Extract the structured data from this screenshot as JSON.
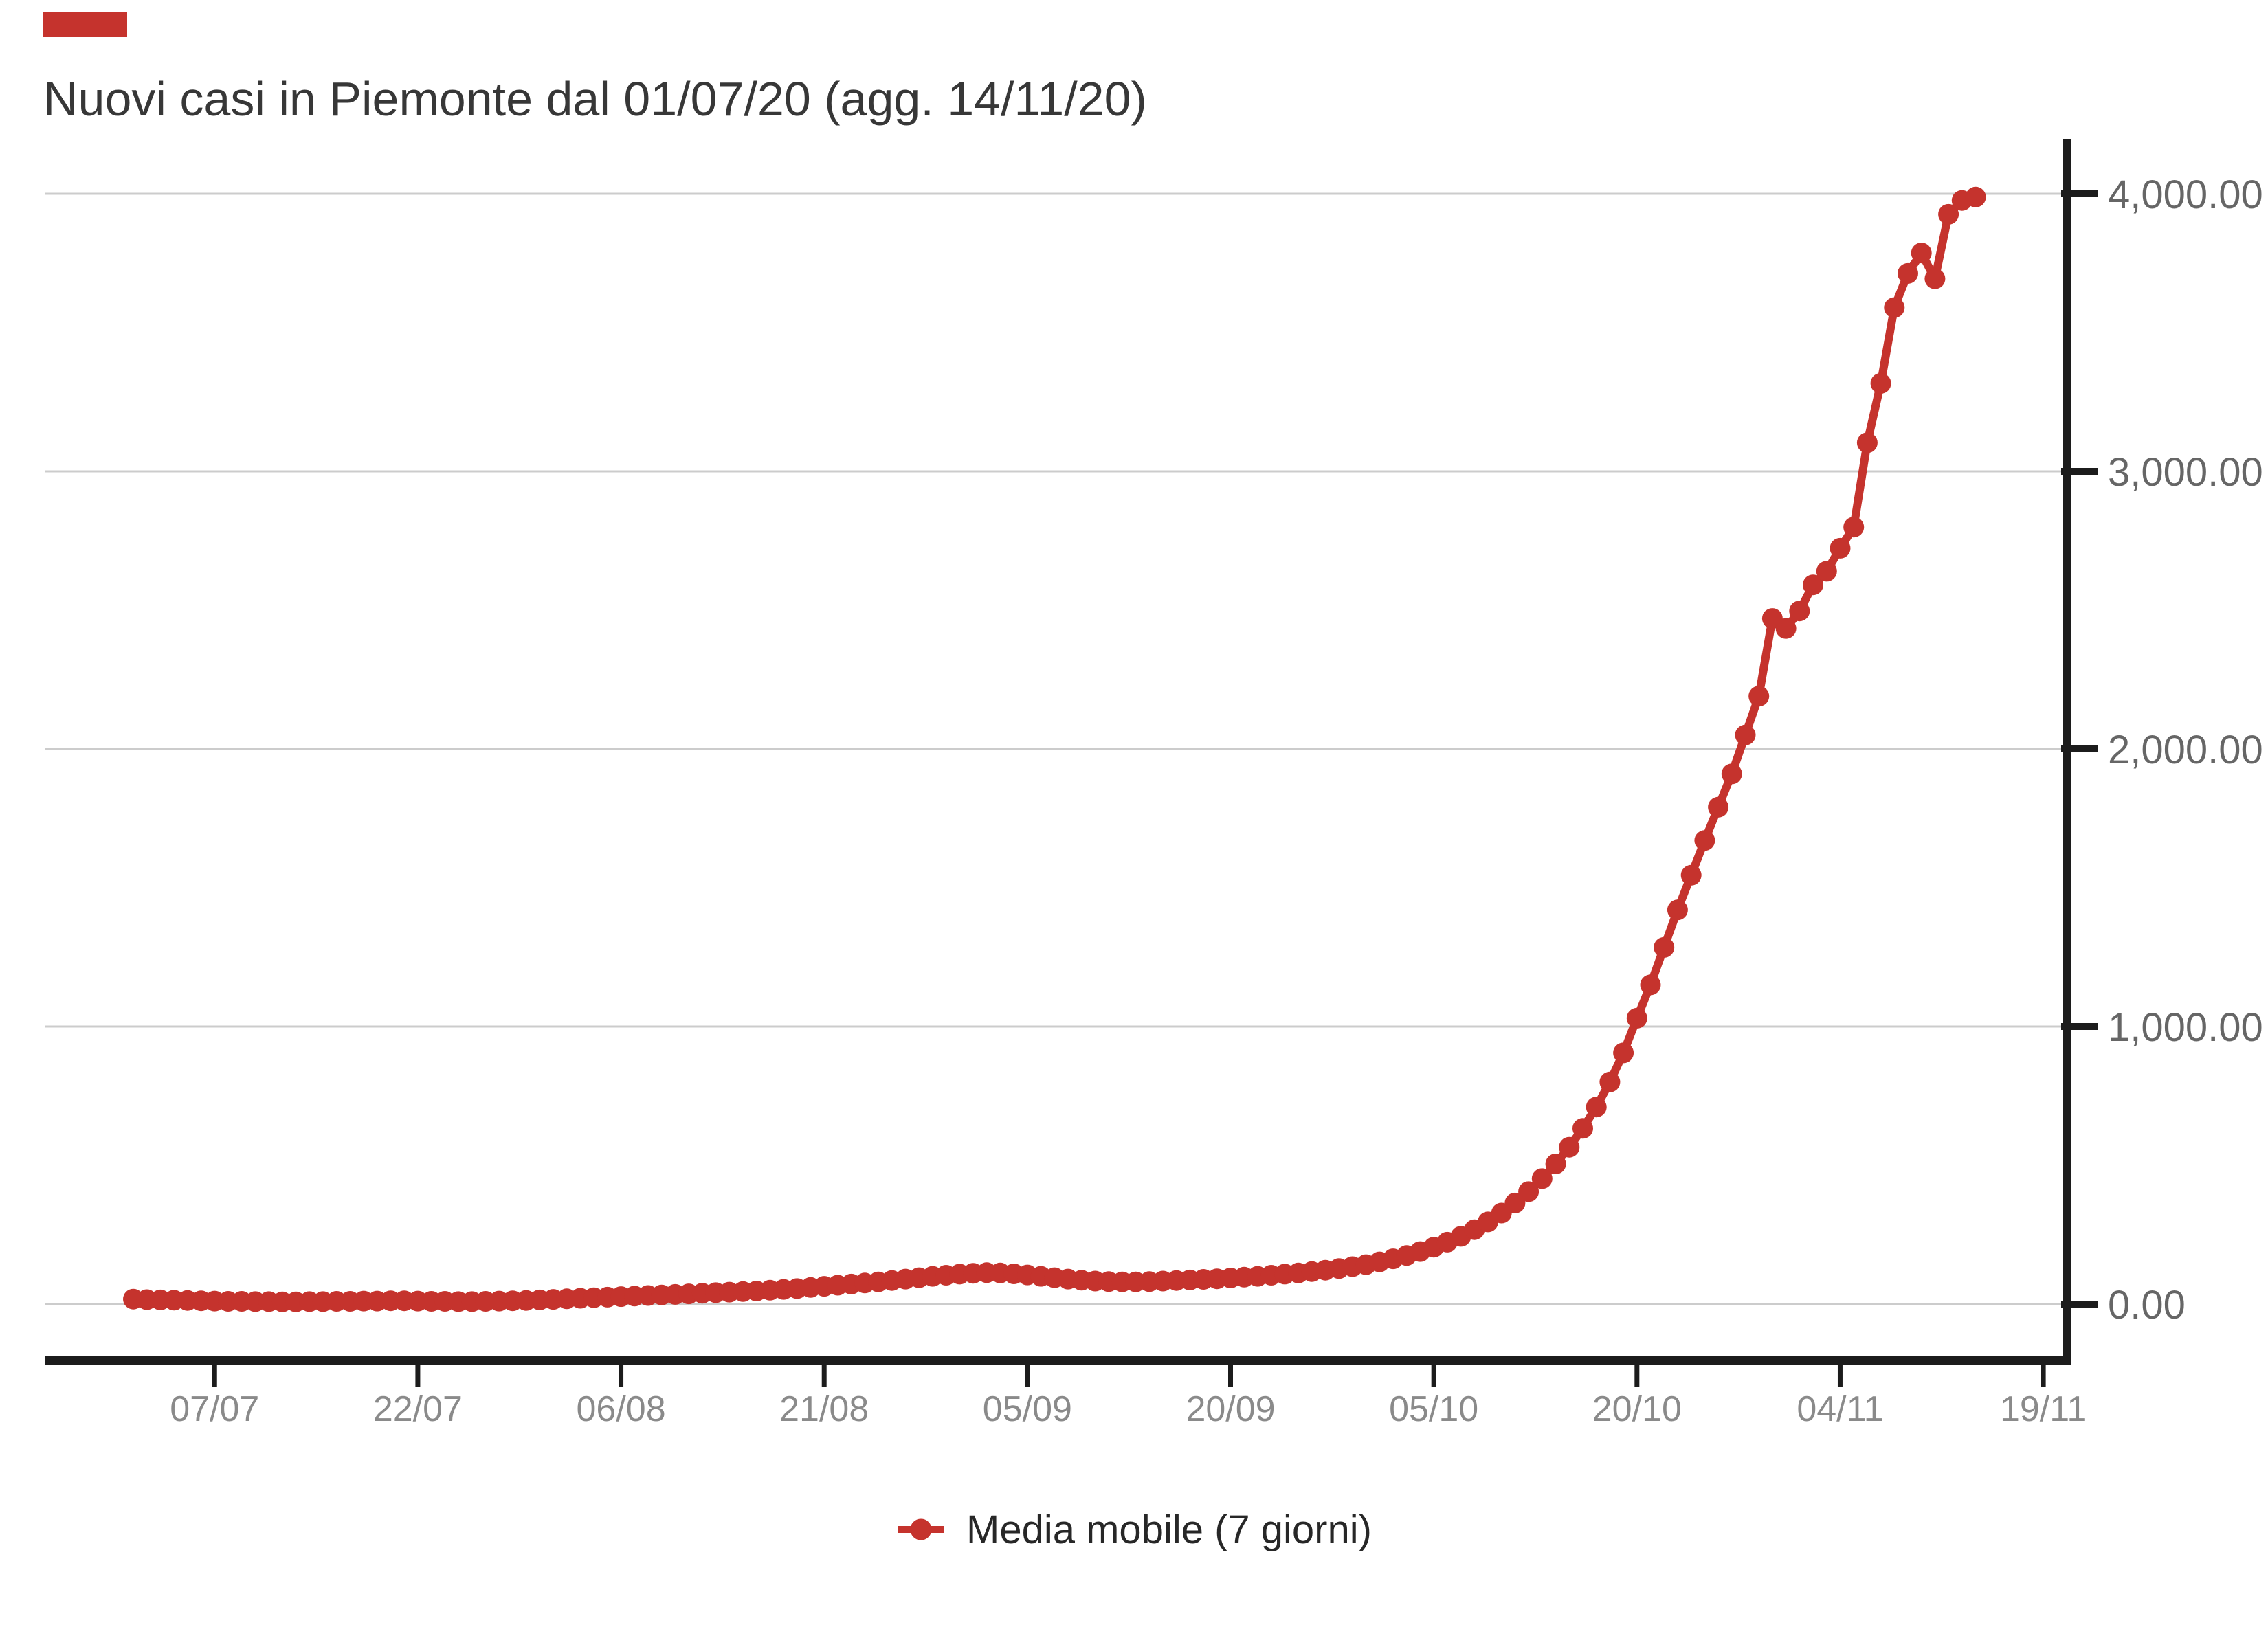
{
  "badge": {
    "color": "#c5332d"
  },
  "title": "Nuovi casi in Piemonte dal 01/07/20 (agg. 14/11/20)",
  "legend": {
    "label": "Media mobile (7 giorni)",
    "marker_color": "#c5332d"
  },
  "chart_data": {
    "type": "line",
    "title": "Nuovi casi in Piemonte dal 01/07/20 (agg. 14/11/20)",
    "series_name": "Media mobile (7 giorni)",
    "color": "#c5332d",
    "x_start_date": "01/07/20",
    "x_end_date": "14/11/20",
    "x_tick_labels": [
      "07/07",
      "22/07",
      "06/08",
      "21/08",
      "05/09",
      "20/09",
      "05/10",
      "20/10",
      "04/11",
      "19/11"
    ],
    "x_tick_day_offsets": [
      6,
      21,
      36,
      51,
      66,
      81,
      96,
      111,
      126,
      141
    ],
    "y_tick_labels": [
      "0.00",
      "1,000.00",
      "2,000.00",
      "3,000.00",
      "4,000.00"
    ],
    "y_tick_values": [
      0,
      1000,
      2000,
      3000,
      4000
    ],
    "ylim": [
      0,
      4200
    ],
    "grid": "horizontal",
    "legend_position": "bottom",
    "axis_color": "#1c1c1c",
    "grid_color": "#cccccc",
    "y_label_color": "#666666",
    "x_label_color": "#8a8a8a",
    "values": [
      18,
      16,
      15,
      14,
      13,
      12,
      11,
      10,
      10,
      9,
      9,
      8,
      8,
      9,
      9,
      10,
      10,
      11,
      11,
      12,
      12,
      11,
      10,
      10,
      9,
      9,
      10,
      11,
      12,
      13,
      15,
      17,
      19,
      21,
      23,
      25,
      27,
      29,
      31,
      33,
      35,
      37,
      39,
      41,
      43,
      45,
      47,
      50,
      53,
      56,
      60,
      64,
      68,
      72,
      76,
      80,
      85,
      90,
      95,
      100,
      104,
      108,
      111,
      113,
      112,
      109,
      105,
      100,
      95,
      90,
      86,
      83,
      81,
      80,
      80,
      81,
      83,
      85,
      87,
      89,
      91,
      94,
      97,
      100,
      104,
      108,
      112,
      117,
      122,
      128,
      135,
      142,
      152,
      163,
      175,
      189,
      205,
      223,
      244,
      268,
      296,
      328,
      364,
      405,
      452,
      505,
      565,
      633,
      710,
      800,
      905,
      1030,
      1150,
      1285,
      1420,
      1545,
      1670,
      1790,
      1910,
      2050,
      2190,
      2470,
      2434,
      2497,
      2591,
      2640,
      2723,
      2799,
      3103,
      3317,
      3590,
      3713,
      3787,
      3694,
      3926,
      3976,
      3988
    ]
  }
}
